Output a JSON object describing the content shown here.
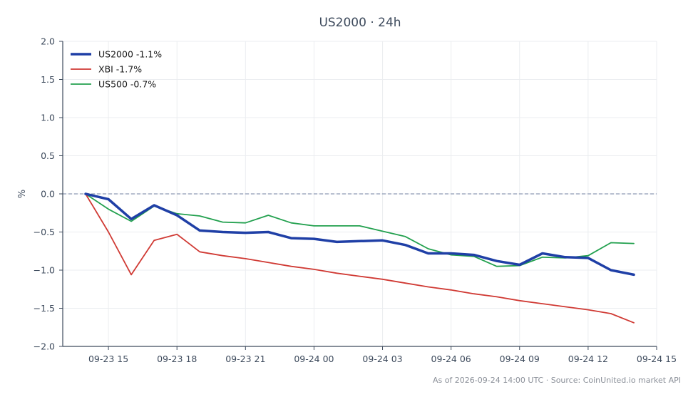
{
  "chart_data": {
    "type": "line",
    "title": "US2000 · 24h",
    "xlabel": "",
    "ylabel": "%",
    "ylim": [
      -2.0,
      2.0
    ],
    "yticks": [
      2.0,
      1.5,
      1.0,
      0.5,
      0.0,
      -0.5,
      -1.0,
      -1.5,
      -2.0
    ],
    "ytick_labels": [
      "2.0",
      "1.5",
      "1.0",
      "0.5",
      "0.0",
      "−0.5",
      "−1.0",
      "−1.5",
      "−2.0"
    ],
    "xlim": [
      "2026-09-23 13:00",
      "2026-09-24 15:00"
    ],
    "xticks": [
      "2026-09-23 15:00",
      "2026-09-23 18:00",
      "2026-09-23 21:00",
      "2026-09-24 00:00",
      "2026-09-24 03:00",
      "2026-09-24 06:00",
      "2026-09-24 09:00",
      "2026-09-24 12:00",
      "2026-09-24 15:00"
    ],
    "xtick_labels": [
      "09-23 15",
      "09-23 18",
      "09-23 21",
      "09-24 00",
      "09-24 03",
      "09-24 06",
      "09-24 09",
      "09-24 12",
      "09-24 15"
    ],
    "grid": true,
    "zero_line": true,
    "legend_position": "top-left",
    "x": [
      "2026-09-23 14:00",
      "2026-09-23 15:00",
      "2026-09-23 16:00",
      "2026-09-23 17:00",
      "2026-09-23 18:00",
      "2026-09-23 19:00",
      "2026-09-23 20:00",
      "2026-09-23 21:00",
      "2026-09-23 22:00",
      "2026-09-23 23:00",
      "2026-09-24 00:00",
      "2026-09-24 01:00",
      "2026-09-24 02:00",
      "2026-09-24 03:00",
      "2026-09-24 04:00",
      "2026-09-24 05:00",
      "2026-09-24 06:00",
      "2026-09-24 07:00",
      "2026-09-24 08:00",
      "2026-09-24 09:00",
      "2026-09-24 10:00",
      "2026-09-24 11:00",
      "2026-09-24 12:00",
      "2026-09-24 13:00",
      "2026-09-24 14:00"
    ],
    "series": [
      {
        "name": "US2000 -1.1%",
        "color": "#1f3fa6",
        "values": [
          0.0,
          -0.07,
          -0.33,
          -0.15,
          -0.28,
          -0.48,
          -0.5,
          -0.51,
          -0.5,
          -0.58,
          -0.59,
          -0.63,
          -0.62,
          -0.61,
          -0.67,
          -0.78,
          -0.78,
          -0.8,
          -0.88,
          -0.93,
          -0.78,
          -0.83,
          -0.84,
          -1.0,
          -1.06
        ]
      },
      {
        "name": "XBI -1.7%",
        "color": "#d03a34",
        "values": [
          0.0,
          -0.5,
          -1.06,
          -0.61,
          -0.53,
          -0.76,
          -0.81,
          -0.85,
          -0.9,
          -0.95,
          -0.99,
          -1.04,
          -1.08,
          -1.12,
          -1.17,
          -1.22,
          -1.26,
          -1.31,
          -1.35,
          -1.4,
          -1.44,
          -1.48,
          -1.52,
          -1.57,
          -1.69
        ]
      },
      {
        "name": "US500 -0.7%",
        "color": "#22a04e",
        "values": [
          0.0,
          -0.2,
          -0.36,
          -0.16,
          -0.26,
          -0.29,
          -0.37,
          -0.38,
          -0.28,
          -0.38,
          -0.42,
          -0.42,
          -0.42,
          -0.49,
          -0.56,
          -0.72,
          -0.8,
          -0.82,
          -0.95,
          -0.94,
          -0.83,
          -0.84,
          -0.81,
          -0.64,
          -0.65
        ]
      }
    ]
  },
  "footer": "As of 2026-09-24 14:00 UTC · Source: CoinUnited.io market API"
}
